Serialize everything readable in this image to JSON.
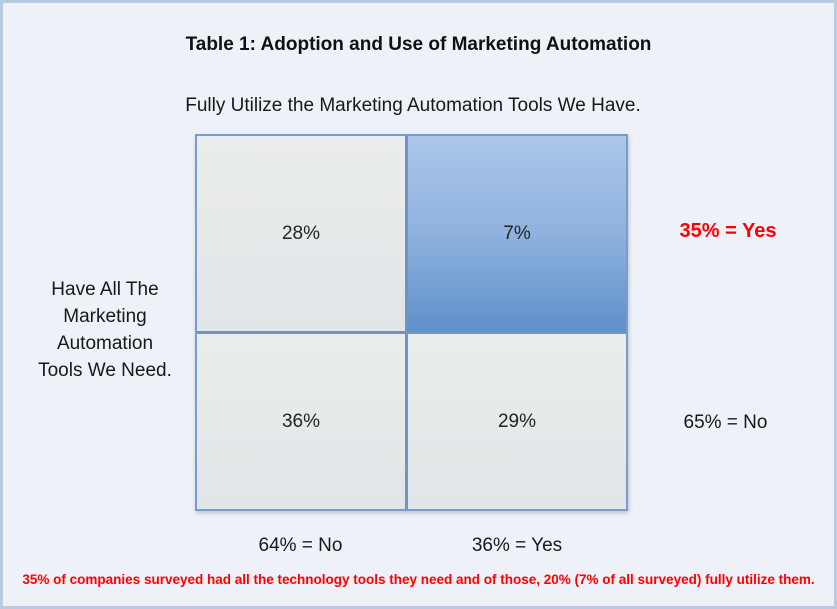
{
  "figure": {
    "title": "Table 1: Adoption and Use of Marketing Automation",
    "column_axis_title": "Fully Utilize the Marketing Automation Tools We Have.",
    "row_axis_title": "Have All The\nMarketing\nAutomation\nTools We Need.",
    "footnote": "35% of companies surveyed had all the technology tools they need and of those, 20% (7% of all surveyed) fully utilize them."
  },
  "matrix": {
    "cells": [
      {
        "position": "top-left",
        "value": "28%",
        "highlighted": false
      },
      {
        "position": "top-right",
        "value": "7%",
        "highlighted": true
      },
      {
        "position": "bottom-left",
        "value": "36%",
        "highlighted": false
      },
      {
        "position": "bottom-right",
        "value": "29%",
        "highlighted": false
      }
    ]
  },
  "annotations": {
    "row_total_yes": "35% = Yes",
    "row_total_no": "65% = No",
    "col_total_no": "64% = No",
    "col_total_yes": "36% = Yes"
  },
  "colors": {
    "highlight_cell_top": "#abc7ea",
    "highlight_cell_bottom": "#5e90ca",
    "plain_cell_gray": "#e6e9ea",
    "grid_line_blue": "#6f93c2",
    "accent_red": "#fe0000",
    "canvas_background": "#eef1f8",
    "canvas_border": "#b9cbe3"
  },
  "chart_data": {
    "type": "table",
    "title": "Table 1: Adoption and Use of Marketing Automation",
    "columns_label": "Fully Utilize the Marketing Automation Tools We Have.",
    "rows_label": "Have All The Marketing Automation Tools We Need.",
    "column_categories": [
      "No (64%)",
      "Yes (36%)"
    ],
    "row_categories": [
      "Yes (35%)",
      "No (65%)"
    ],
    "values_percent": [
      [
        28,
        7
      ],
      [
        36,
        29
      ]
    ],
    "row_totals_percent": [
      35,
      65
    ],
    "column_totals_percent": [
      64,
      36
    ],
    "highlighted_cell": {
      "row": "Yes (35%)",
      "column": "Yes (36%)",
      "value_percent": 7
    },
    "legend_position": "none",
    "grid": true,
    "footnote": "35% of companies surveyed had all the technology tools they need and of those, 20% (7% of all surveyed) fully utilize them."
  }
}
